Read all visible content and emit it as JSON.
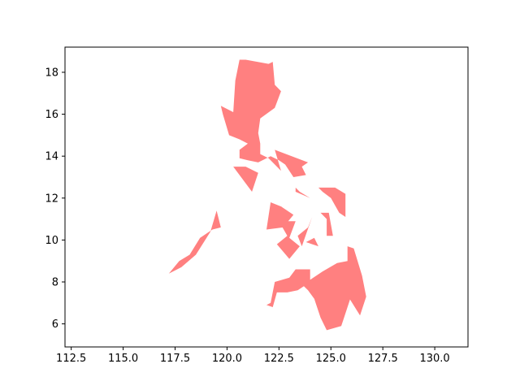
{
  "chart_data": {
    "type": "map",
    "title": "",
    "xlabel": "",
    "ylabel": "",
    "xlim": [
      112.2,
      131.6
    ],
    "ylim": [
      4.9,
      19.2
    ],
    "x_ticks": [
      "112.5",
      "115.0",
      "117.5",
      "120.0",
      "122.5",
      "125.0",
      "127.5",
      "130.0"
    ],
    "y_ticks": [
      "6",
      "8",
      "10",
      "12",
      "14",
      "16",
      "18"
    ],
    "fill_color": "#ff8080",
    "frame_color": "#000000",
    "grid": false,
    "regions": [
      {
        "name": "luzon",
        "coords": [
          [
            120.6,
            18.6
          ],
          [
            120.9,
            18.6
          ],
          [
            122.0,
            18.4
          ],
          [
            122.2,
            18.5
          ],
          [
            122.3,
            17.4
          ],
          [
            122.6,
            17.1
          ],
          [
            122.3,
            16.3
          ],
          [
            121.6,
            15.8
          ],
          [
            121.5,
            15.1
          ],
          [
            121.6,
            14.6
          ],
          [
            121.6,
            14.1
          ],
          [
            122.0,
            13.9
          ],
          [
            122.6,
            13.3
          ],
          [
            122.3,
            14.3
          ],
          [
            123.9,
            13.7
          ],
          [
            123.6,
            13.5
          ],
          [
            123.8,
            13.1
          ],
          [
            123.2,
            13.0
          ],
          [
            122.8,
            13.6
          ],
          [
            122.5,
            13.8
          ],
          [
            122.1,
            14.0
          ],
          [
            121.5,
            13.7
          ],
          [
            121.0,
            13.8
          ],
          [
            120.6,
            13.9
          ],
          [
            120.6,
            14.3
          ],
          [
            121.0,
            14.6
          ],
          [
            120.6,
            14.8
          ],
          [
            120.1,
            15.0
          ],
          [
            119.8,
            16.0
          ],
          [
            119.7,
            16.4
          ],
          [
            120.3,
            16.1
          ],
          [
            120.4,
            17.6
          ]
        ]
      },
      {
        "name": "mindoro",
        "coords": [
          [
            120.3,
            13.5
          ],
          [
            120.9,
            13.5
          ],
          [
            121.5,
            13.2
          ],
          [
            121.2,
            12.3
          ]
        ]
      },
      {
        "name": "palawan",
        "coords": [
          [
            117.2,
            8.4
          ],
          [
            117.7,
            9.0
          ],
          [
            118.2,
            9.3
          ],
          [
            118.7,
            10.1
          ],
          [
            119.3,
            10.5
          ],
          [
            119.7,
            10.6
          ],
          [
            119.5,
            11.4
          ],
          [
            119.2,
            10.4
          ],
          [
            118.5,
            9.3
          ],
          [
            117.8,
            8.7
          ]
        ]
      },
      {
        "name": "panay",
        "coords": [
          [
            121.9,
            10.5
          ],
          [
            122.1,
            11.8
          ],
          [
            122.6,
            11.6
          ],
          [
            123.2,
            11.2
          ],
          [
            122.7,
            10.6
          ]
        ]
      },
      {
        "name": "negros",
        "coords": [
          [
            122.5,
            10.9
          ],
          [
            123.3,
            10.9
          ],
          [
            123.0,
            10.1
          ],
          [
            123.5,
            9.7
          ],
          [
            123.0,
            9.1
          ],
          [
            122.4,
            9.8
          ],
          [
            122.9,
            10.2
          ]
        ]
      },
      {
        "name": "cebu",
        "coords": [
          [
            123.4,
            10.2
          ],
          [
            123.6,
            9.7
          ],
          [
            124.1,
            11.1
          ],
          [
            123.9,
            10.6
          ]
        ]
      },
      {
        "name": "bohol",
        "coords": [
          [
            123.8,
            9.9
          ],
          [
            124.2,
            10.1
          ],
          [
            124.4,
            9.7
          ]
        ]
      },
      {
        "name": "leyte",
        "coords": [
          [
            124.5,
            11.3
          ],
          [
            124.9,
            11.3
          ],
          [
            125.1,
            10.2
          ],
          [
            124.8,
            10.2
          ],
          [
            124.8,
            11.0
          ]
        ]
      },
      {
        "name": "samar",
        "coords": [
          [
            124.4,
            12.5
          ],
          [
            125.2,
            12.5
          ],
          [
            125.7,
            12.2
          ],
          [
            125.7,
            11.1
          ],
          [
            125.4,
            11.3
          ],
          [
            125.0,
            12.0
          ],
          [
            124.6,
            12.3
          ]
        ]
      },
      {
        "name": "masbate",
        "coords": [
          [
            123.3,
            12.5
          ],
          [
            123.5,
            12.3
          ],
          [
            124.0,
            12.0
          ],
          [
            123.3,
            12.3
          ]
        ]
      },
      {
        "name": "mindanao",
        "coords": [
          [
            121.9,
            6.9
          ],
          [
            122.1,
            7.0
          ],
          [
            122.3,
            8.0
          ],
          [
            123.0,
            8.2
          ],
          [
            123.3,
            8.6
          ],
          [
            124.0,
            8.6
          ],
          [
            124.0,
            8.1
          ],
          [
            124.6,
            8.5
          ],
          [
            125.3,
            8.9
          ],
          [
            125.8,
            9.0
          ],
          [
            125.8,
            9.7
          ],
          [
            126.1,
            9.6
          ],
          [
            126.5,
            8.3
          ],
          [
            126.7,
            7.3
          ],
          [
            126.4,
            6.4
          ],
          [
            125.9,
            7.2
          ],
          [
            126.0,
            7.4
          ],
          [
            125.6,
            6.2
          ],
          [
            125.5,
            5.9
          ],
          [
            124.8,
            5.7
          ],
          [
            124.5,
            6.3
          ],
          [
            124.2,
            7.2
          ],
          [
            123.9,
            7.6
          ],
          [
            123.7,
            7.8
          ],
          [
            123.4,
            7.6
          ],
          [
            122.9,
            7.5
          ],
          [
            122.4,
            7.5
          ],
          [
            122.2,
            6.8
          ]
        ]
      }
    ]
  }
}
